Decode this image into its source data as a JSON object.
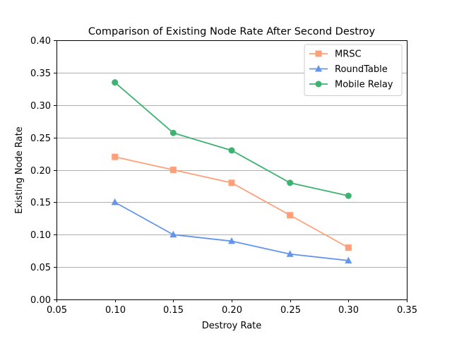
{
  "chart_data": {
    "type": "line",
    "title": "Comparison of Existing Node Rate After Second Destroy",
    "xlabel": "Destroy Rate",
    "ylabel": "Existing Node Rate",
    "xlim": [
      0.05,
      0.35
    ],
    "ylim": [
      0.0,
      0.4
    ],
    "x_ticks": [
      "0.05",
      "0.10",
      "0.15",
      "0.20",
      "0.25",
      "0.30",
      "0.35"
    ],
    "y_ticks": [
      "0.00",
      "0.05",
      "0.10",
      "0.15",
      "0.20",
      "0.25",
      "0.30",
      "0.35",
      "0.40"
    ],
    "grid": "horizontal",
    "legend_position": "top-right",
    "x": [
      0.1,
      0.15,
      0.2,
      0.25,
      0.3
    ],
    "series": [
      {
        "name": "MRSC",
        "values": [
          0.22,
          0.2,
          0.18,
          0.13,
          0.08
        ],
        "color": "#FFA07A",
        "marker": "square"
      },
      {
        "name": "RoundTable",
        "values": [
          0.15,
          0.1,
          0.09,
          0.07,
          0.06
        ],
        "color": "#6495ED",
        "marker": "triangle"
      },
      {
        "name": "Mobile Relay",
        "values": [
          0.335,
          0.257,
          0.23,
          0.18,
          0.16
        ],
        "color": "#3CB371",
        "marker": "circle"
      }
    ]
  }
}
